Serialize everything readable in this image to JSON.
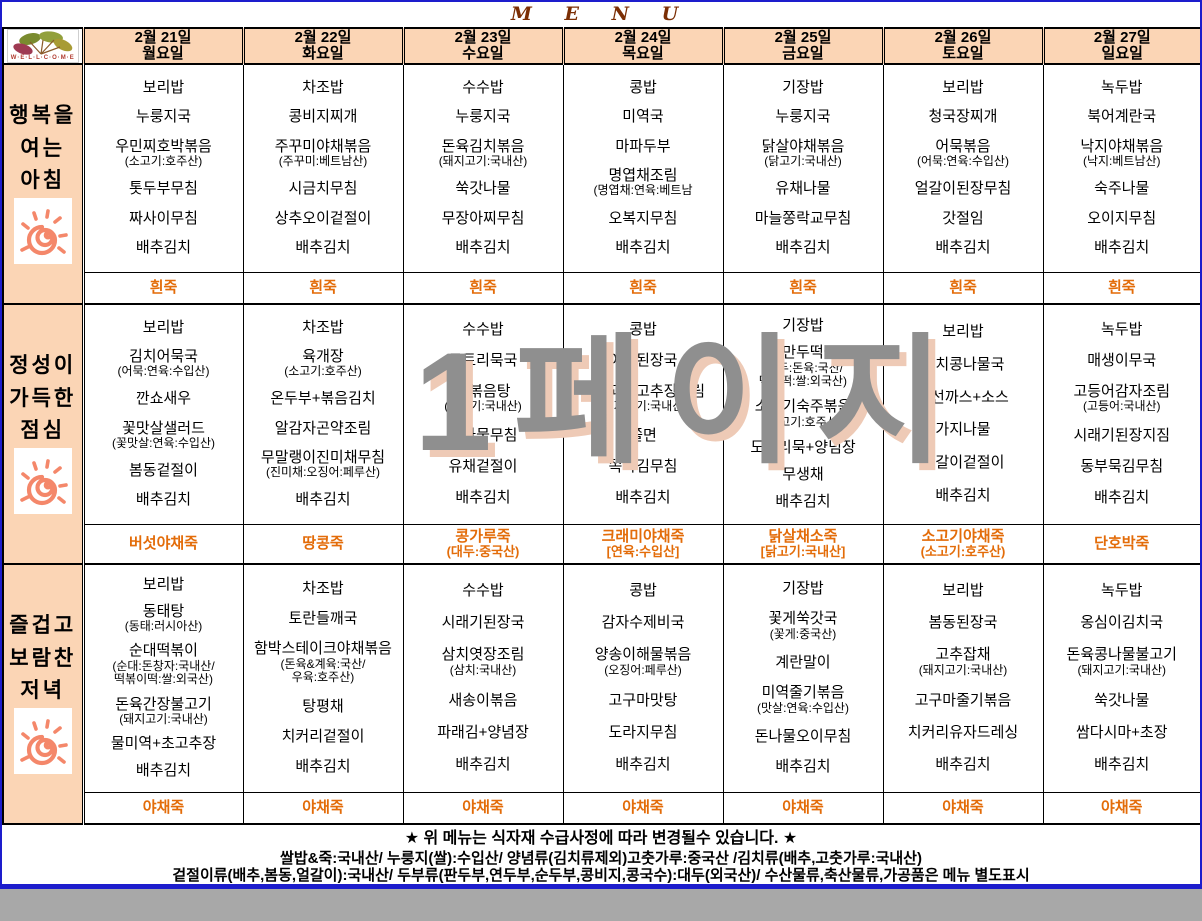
{
  "title": "M E N U",
  "logo": {
    "text": "W·E·L·L·C·O·M·E"
  },
  "watermark": "1페이지",
  "colors": {
    "header_peach": "#FBD5B5",
    "porridge_orange": "#E36C09",
    "title_brown": "#7B2E04",
    "page_border_blue": "#1D1DCC",
    "outside_gray": "#A8A8A8",
    "watermark_gray": "#8F8F8F",
    "sun_icon_salmon": "#F4876A"
  },
  "days": [
    {
      "date": "2월 21일",
      "weekday": "월요일"
    },
    {
      "date": "2월 22일",
      "weekday": "화요일"
    },
    {
      "date": "2월 23일",
      "weekday": "수요일"
    },
    {
      "date": "2월 24일",
      "weekday": "목요일"
    },
    {
      "date": "2월 25일",
      "weekday": "금요일"
    },
    {
      "date": "2월 26일",
      "weekday": "토요일"
    },
    {
      "date": "2월 27일",
      "weekday": "일요일"
    }
  ],
  "sections": [
    {
      "id": "breakfast",
      "label": "행복을\n여는\n아침",
      "cells": [
        {
          "items": [
            {
              "n": "보리밥"
            },
            {
              "n": "누룽지국"
            },
            {
              "n": "우민찌호박볶음",
              "s": "(소고기:호주산)"
            },
            {
              "n": "톳두부무침"
            },
            {
              "n": "짜사이무침"
            },
            {
              "n": "배추김치"
            }
          ],
          "porridge": {
            "n": "흰죽"
          }
        },
        {
          "items": [
            {
              "n": "차조밥"
            },
            {
              "n": "콩비지찌개"
            },
            {
              "n": "주꾸미야채볶음",
              "s": "(주꾸미:베트남산)"
            },
            {
              "n": "시금치무침"
            },
            {
              "n": "상추오이겉절이"
            },
            {
              "n": "배추김치"
            }
          ],
          "porridge": {
            "n": "흰죽"
          }
        },
        {
          "items": [
            {
              "n": "수수밥"
            },
            {
              "n": "누룽지국"
            },
            {
              "n": "돈육김치볶음",
              "s": "(돼지고기:국내산)"
            },
            {
              "n": "쑥갓나물"
            },
            {
              "n": "무장아찌무침"
            },
            {
              "n": "배추김치"
            }
          ],
          "porridge": {
            "n": "흰죽"
          }
        },
        {
          "items": [
            {
              "n": "콩밥"
            },
            {
              "n": "미역국"
            },
            {
              "n": "마파두부"
            },
            {
              "n": "명엽채조림",
              "s": "(명엽채:연육:베트남"
            },
            {
              "n": "오복지무침"
            },
            {
              "n": "배추김치"
            }
          ],
          "porridge": {
            "n": "흰죽"
          }
        },
        {
          "items": [
            {
              "n": "기장밥"
            },
            {
              "n": "누룽지국"
            },
            {
              "n": "닭살야채볶음",
              "s": "(닭고기:국내산)"
            },
            {
              "n": "유채나물"
            },
            {
              "n": "마늘쫑락교무침"
            },
            {
              "n": "배추김치"
            }
          ],
          "porridge": {
            "n": "흰죽"
          }
        },
        {
          "items": [
            {
              "n": "보리밥"
            },
            {
              "n": "청국장찌개"
            },
            {
              "n": "어묵볶음",
              "s": "(어묵:연육:수입산)"
            },
            {
              "n": "얼갈이된장무침"
            },
            {
              "n": "갓절임"
            },
            {
              "n": "배추김치"
            }
          ],
          "porridge": {
            "n": "흰죽"
          }
        },
        {
          "items": [
            {
              "n": "녹두밥"
            },
            {
              "n": "북어계란국"
            },
            {
              "n": "낙지야채볶음",
              "s": "(낙지:베트남산)"
            },
            {
              "n": "숙주나물"
            },
            {
              "n": "오이지무침"
            },
            {
              "n": "배추김치"
            }
          ],
          "porridge": {
            "n": "흰죽"
          }
        }
      ]
    },
    {
      "id": "lunch",
      "label": "정성이\n가득한\n점심",
      "cells": [
        {
          "items": [
            {
              "n": "보리밥"
            },
            {
              "n": "김치어묵국",
              "s": "(어묵:연육:수입산)"
            },
            {
              "n": "깐쇼새우"
            },
            {
              "n": "꽃맛살샐러드",
              "s": "(꽃맛살:연육:수입산)"
            },
            {
              "n": "봄동겉절이"
            },
            {
              "n": "배추김치"
            }
          ],
          "porridge": {
            "n": "버섯야채죽"
          }
        },
        {
          "items": [
            {
              "n": "차조밥"
            },
            {
              "n": "육개장",
              "s": "(소고기:호주산)"
            },
            {
              "n": "온두부+볶음김치"
            },
            {
              "n": "알감자곤약조림"
            },
            {
              "n": "무말랭이진미채무침",
              "s": "(진미채:오징어:페루산)"
            },
            {
              "n": "배추김치"
            }
          ],
          "porridge": {
            "n": "땅콩죽"
          }
        },
        {
          "items": [
            {
              "n": "수수밥"
            },
            {
              "n": "도토리묵국"
            },
            {
              "n": "닭볶음탕",
              "s": "(닭고기:국내산)"
            },
            {
              "n": "콩나물무침"
            },
            {
              "n": "유채겉절이"
            },
            {
              "n": "배추김치"
            }
          ],
          "porridge": {
            "n": "콩가루죽",
            "s": "(대두:중국산)"
          }
        },
        {
          "items": [
            {
              "n": "콩밥"
            },
            {
              "n": "아욱된장국"
            },
            {
              "n": "돈육꽈리고추장조림",
              "s": "(돼지고기:국내산)"
            },
            {
              "n": "쫄면"
            },
            {
              "n": "쪽파김무침"
            },
            {
              "n": "배추김치"
            }
          ],
          "porridge": {
            "n": "크래미야채죽",
            "s": "[연육:수입산]"
          }
        },
        {
          "items": [
            {
              "n": "기장밥"
            },
            {
              "n": "손만두떡국",
              "s": "(만두:돈육:국산/\n떡국떡:쌀:외국산)"
            },
            {
              "n": "소고기숙주볶음",
              "s": "(소고기:호주산)"
            },
            {
              "n": "도토리묵+양념장"
            },
            {
              "n": "무생채"
            },
            {
              "n": "배추김치"
            }
          ],
          "porridge": {
            "n": "닭살채소죽",
            "s": "[닭고기:국내산]"
          }
        },
        {
          "items": [
            {
              "n": "보리밥"
            },
            {
              "n": "김치콩나물국"
            },
            {
              "n": "생선까스+소스"
            },
            {
              "n": "가지나물"
            },
            {
              "n": "얼갈이겉절이"
            },
            {
              "n": "배추김치"
            }
          ],
          "porridge": {
            "n": "소고기야채죽",
            "s": "(소고기:호주산)"
          }
        },
        {
          "items": [
            {
              "n": "녹두밥"
            },
            {
              "n": "매생이무국"
            },
            {
              "n": "고등어감자조림",
              "s": "(고등어:국내산)"
            },
            {
              "n": "시래기된장지짐"
            },
            {
              "n": "동부묵김무침"
            },
            {
              "n": "배추김치"
            }
          ],
          "porridge": {
            "n": "단호박죽"
          }
        }
      ]
    },
    {
      "id": "dinner",
      "label": "즐겁고\n보람찬\n저녁",
      "cells": [
        {
          "items": [
            {
              "n": "보리밥"
            },
            {
              "n": "동태탕",
              "s": "(동태:러시아산)"
            },
            {
              "n": "순대떡볶이",
              "s": "(순대:돈창자:국내산/\n떡볶이떡:쌀:외국산)"
            },
            {
              "n": "돈육간장불고기",
              "s": "(돼지고기:국내산)"
            },
            {
              "n": "물미역+초고추장"
            },
            {
              "n": "배추김치"
            }
          ],
          "porridge": {
            "n": "야채죽"
          }
        },
        {
          "items": [
            {
              "n": "차조밥"
            },
            {
              "n": "토란들깨국"
            },
            {
              "n": "함박스테이크야채볶음",
              "s": "(돈육&계육:국산/\n우육:호주산)"
            },
            {
              "n": "탕평채"
            },
            {
              "n": "치커리겉절이"
            },
            {
              "n": "배추김치"
            }
          ],
          "porridge": {
            "n": "야채죽"
          }
        },
        {
          "items": [
            {
              "n": "수수밥"
            },
            {
              "n": "시래기된장국"
            },
            {
              "n": "삼치엿장조림",
              "s": "(삼치:국내산)"
            },
            {
              "n": "새송이볶음"
            },
            {
              "n": "파래김+양념장"
            },
            {
              "n": "배추김치"
            }
          ],
          "porridge": {
            "n": "야채죽"
          }
        },
        {
          "items": [
            {
              "n": "콩밥"
            },
            {
              "n": "감자수제비국"
            },
            {
              "n": "양송이해물볶음",
              "s": "(오징어:페루산)"
            },
            {
              "n": "고구마맛탕"
            },
            {
              "n": "도라지무침"
            },
            {
              "n": "배추김치"
            }
          ],
          "porridge": {
            "n": "야채죽"
          }
        },
        {
          "items": [
            {
              "n": "기장밥"
            },
            {
              "n": "꽃게쑥갓국",
              "s": "(꽃게:중국산)"
            },
            {
              "n": "계란말이"
            },
            {
              "n": "미역줄기볶음",
              "s": "(맛살:연육:수입산)"
            },
            {
              "n": "돈나물오이무침"
            },
            {
              "n": "배추김치"
            }
          ],
          "porridge": {
            "n": "야채죽"
          }
        },
        {
          "items": [
            {
              "n": "보리밥"
            },
            {
              "n": "봄동된장국"
            },
            {
              "n": "고추잡채",
              "s": "(돼지고기:국내산)"
            },
            {
              "n": "고구마줄기볶음"
            },
            {
              "n": "치커리유자드레싱"
            },
            {
              "n": "배추김치"
            }
          ],
          "porridge": {
            "n": "야채죽"
          }
        },
        {
          "items": [
            {
              "n": "녹두밥"
            },
            {
              "n": "옹심이김치국"
            },
            {
              "n": "돈육콩나물불고기",
              "s": "(돼지고기:국내산)"
            },
            {
              "n": "쑥갓나물"
            },
            {
              "n": "쌈다시마+초장"
            },
            {
              "n": "배추김치"
            }
          ],
          "porridge": {
            "n": "야채죽"
          }
        }
      ]
    }
  ],
  "footer": {
    "line1": "★ 위 메뉴는 식자재 수급사정에 따라 변경될수 있습니다. ★",
    "line2": "쌀밥&죽:국내산/ 누룽지(쌀):수입산/ 양념류(김치류제외)고춧가루:중국산 /김치류(배추,고춧가루:국내산)",
    "line3": "겉절이류(배추,봄동,얼갈이):국내산/ 두부류(판두부,연두부,순두부,콩비지,콩국수):대두(외국산)/ 수산물류,축산물류,가공품은 메뉴 별도표시"
  }
}
